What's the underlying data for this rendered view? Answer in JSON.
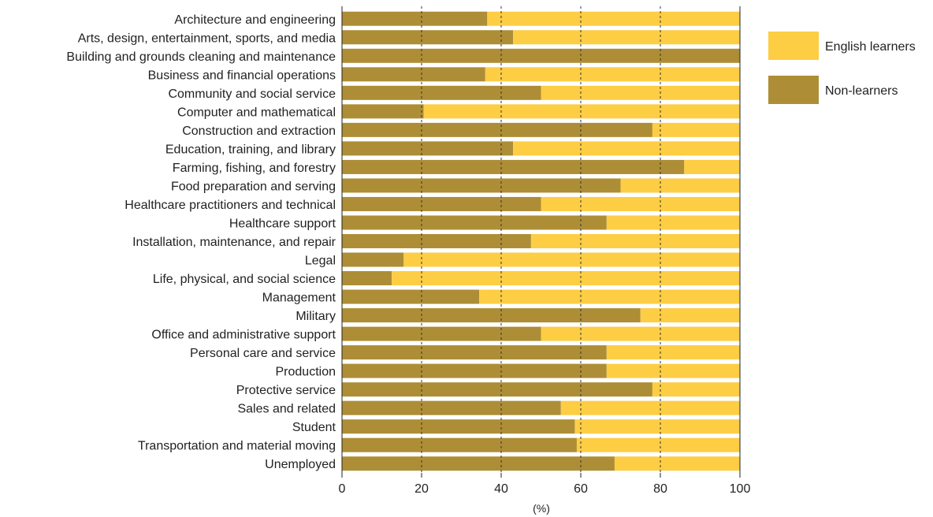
{
  "colors": {
    "english_learners": "#fdcd44",
    "non_learners": "#ad8e36",
    "grid": "#333333",
    "axis": "#222222"
  },
  "chart_data": {
    "type": "bar",
    "orientation": "horizontal",
    "stacked": true,
    "xlabel": "(%)",
    "xlim": [
      0,
      100
    ],
    "xticks": [
      0,
      20,
      40,
      60,
      80,
      100
    ],
    "grid": true,
    "legend_position": "right",
    "categories": [
      "Architecture and engineering",
      "Arts, design, entertainment, sports, and media",
      "Building and grounds cleaning and maintenance",
      "Business and financial operations",
      "Community and social service",
      "Computer and mathematical",
      "Construction and extraction",
      "Education, training, and library",
      "Farming, fishing, and forestry",
      "Food preparation and serving",
      "Healthcare practitioners and technical",
      "Healthcare support",
      "Installation, maintenance, and repair",
      "Legal",
      "Life, physical, and social science",
      "Management",
      "Military",
      "Office and administrative support",
      "Personal care and service",
      "Production",
      "Protective service",
      "Sales and related",
      "Student",
      "Transportation and material moving",
      "Unemployed"
    ],
    "series": [
      {
        "name": "Non-learners",
        "values": [
          36.5,
          43,
          100,
          36,
          50,
          20.5,
          78,
          43,
          86,
          70,
          50,
          66.5,
          47.5,
          15.5,
          12.5,
          34.5,
          75,
          50,
          66.5,
          66.5,
          78,
          55,
          58.5,
          59,
          68.5
        ]
      },
      {
        "name": "English learners",
        "values": [
          63.5,
          57,
          0,
          64,
          50,
          79.5,
          22,
          57,
          14,
          30,
          50,
          33.5,
          52.5,
          84.5,
          87.5,
          65.5,
          25,
          50,
          33.5,
          33.5,
          22,
          45,
          41.5,
          41,
          31.5
        ]
      }
    ]
  }
}
